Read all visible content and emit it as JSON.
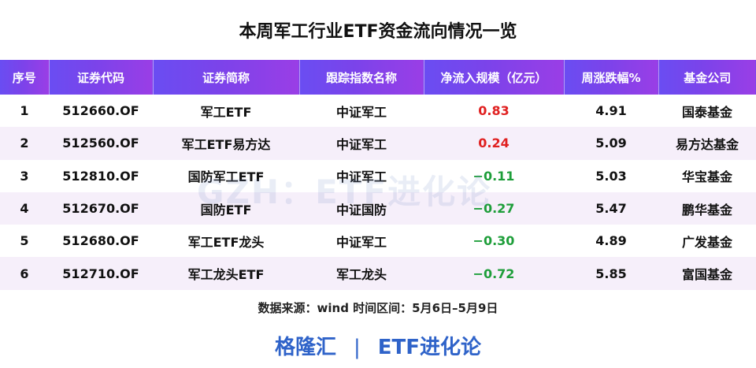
{
  "title": "本周军工行业ETF资金流向情况一览",
  "columns": [
    "序号",
    "证券代码",
    "证券简称",
    "跟踪指数名称",
    "净流入规模（亿元）",
    "周涨跌幅%",
    "基金公司"
  ],
  "rows": [
    {
      "idx": "1",
      "code": "512660.OF",
      "name": "军工ETF",
      "index": "中证军工",
      "flow": "0.83",
      "flow_sign": "pos",
      "change": "4.91",
      "company": "国泰基金"
    },
    {
      "idx": "2",
      "code": "512560.OF",
      "name": "军工ETF易方达",
      "index": "中证军工",
      "flow": "0.24",
      "flow_sign": "pos",
      "change": "5.09",
      "company": "易方达基金"
    },
    {
      "idx": "3",
      "code": "512810.OF",
      "name": "国防军工ETF",
      "index": "中证军工",
      "flow": "−0.11",
      "flow_sign": "neg",
      "change": "5.03",
      "company": "华宝基金"
    },
    {
      "idx": "4",
      "code": "512670.OF",
      "name": "国防ETF",
      "index": "中证国防",
      "flow": "−0.27",
      "flow_sign": "neg",
      "change": "5.47",
      "company": "鹏华基金"
    },
    {
      "idx": "5",
      "code": "512680.OF",
      "name": "军工ETF龙头",
      "index": "中证军工",
      "flow": "−0.30",
      "flow_sign": "neg",
      "change": "4.89",
      "company": "广发基金"
    },
    {
      "idx": "6",
      "code": "512710.OF",
      "name": "军工龙头ETF",
      "index": "军工龙头",
      "flow": "−0.72",
      "flow_sign": "neg",
      "change": "5.85",
      "company": "富国基金"
    }
  ],
  "source_note": "数据来源：wind 时间区间：5月6日–5月9日",
  "watermark": "GZH：ETF进化论",
  "footer": {
    "left": "格隆汇",
    "separator": "|",
    "right": "ETF进化论"
  },
  "colors": {
    "header_start": "#6a4df2",
    "header_end": "#9a3ee6",
    "row_alt": "#f6effa",
    "positive": "#e02020",
    "negative": "#1e9e3a",
    "footer": "#2f63c9"
  }
}
